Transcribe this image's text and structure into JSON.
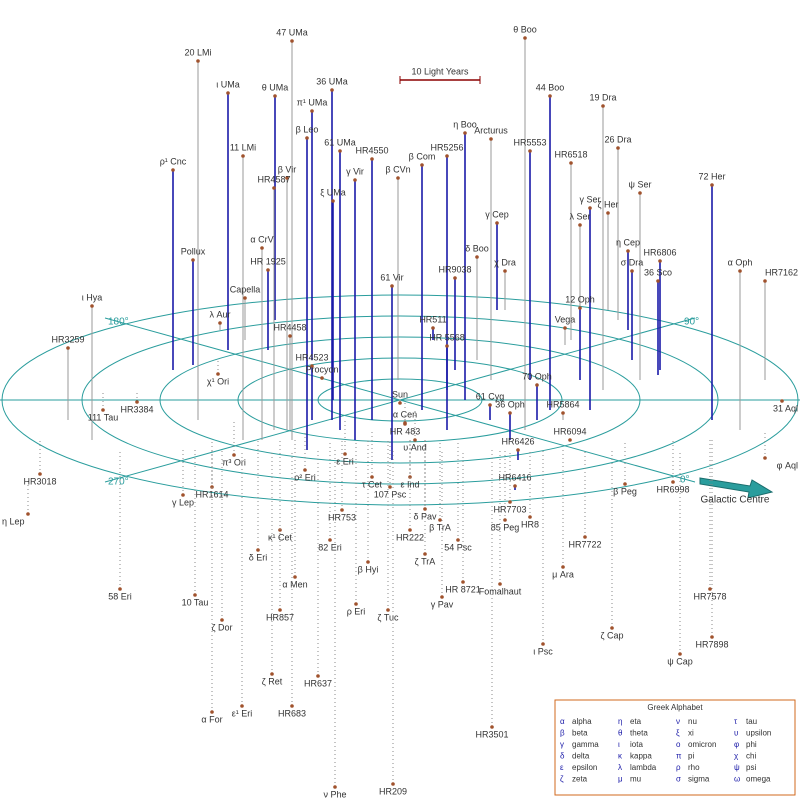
{
  "scale_label": "10 Light Years",
  "angle_labels": [
    "90°",
    "270°",
    "180°",
    "0°"
  ],
  "galactic_centre": "Galactic Centre",
  "stars": [
    "20 LMi",
    "47 UMa",
    "θ Boo",
    "ι UMa",
    "θ UMa",
    "36 UMa",
    "44 Boo",
    "19 Dra",
    "π¹ UMa",
    "η Boo",
    "Arcturus",
    "β Leo",
    "11 LMi",
    "61 UMa",
    "HR4550",
    "HR5256",
    "HR5553",
    "HR6518",
    "26 Dra",
    "ρ¹ Cnc",
    "β Vir",
    "γ Vir",
    "β CVn",
    "β Com",
    "HR4587",
    "ξ UMa",
    "72 Her",
    "ψ Ser",
    "γ Ser",
    "ζ Her",
    "λ Ser",
    "γ Cep",
    "α CrV",
    "η Cep",
    "δ Boo",
    "HR6806",
    "χ Dra",
    "Pollux",
    "HR 1925",
    "α Oph",
    "σ Dra",
    "HR7162",
    "36 Sco",
    "HR9038",
    "61 Vir",
    "Capella",
    "ι Hya",
    "12 Oph",
    "HR511",
    "λ Aur",
    "Vega",
    "HR4458",
    "HR 5568",
    "HR3259",
    "HR4523",
    "Procyon",
    "Sun",
    "α Cen",
    "61 Cyg",
    "70 Oph",
    "36 Oph",
    "HR5864",
    "HR6094",
    "HR6426",
    "HR6416",
    "HR 483",
    "υ And",
    "η Lep",
    "HR3018",
    "111 Tau",
    "HR3384",
    "HR1614",
    "γ Lep",
    "χ¹ Ori",
    "π³ Ori",
    "ο² Eri",
    "ε Eri",
    "τ Cet",
    "107 Psc",
    "ε Ind",
    "κ¹ Cet",
    "HR753",
    "82 Eri",
    "δ Eri",
    "α Men",
    "58 Eri",
    "10 Tau",
    "ζ Dor",
    "HR857",
    "ρ Eri",
    "β Hyi",
    "ζ Tuc",
    "HR222",
    "ζ TrA",
    "δ Pav",
    "β TrA",
    "54 Psc",
    "85 Peg",
    "HR8",
    "HR7703",
    "HR 8721",
    "Fomalhaut",
    "γ Pav",
    "μ Ara",
    "HR7722",
    "ζ Cap",
    "ι Psc",
    "ψ Cap",
    "HR7898",
    "HR7578",
    "HR6998",
    "β Peg",
    "φ Aql",
    "31 Aql",
    "ζ Ret",
    "HR637",
    "HR683",
    "α For",
    "ε¹ Eri",
    "HR3501",
    "ν Phe",
    "HR209"
  ],
  "legend": {
    "title": "Greek Alphabet",
    "letters": [
      {
        "symbol": "α",
        "name": "alpha"
      },
      {
        "symbol": "β",
        "name": "beta"
      },
      {
        "symbol": "γ",
        "name": "gamma"
      },
      {
        "symbol": "δ",
        "name": "delta"
      },
      {
        "symbol": "ε",
        "name": "epsilon"
      },
      {
        "symbol": "ζ",
        "name": "zeta"
      },
      {
        "symbol": "η",
        "name": "eta"
      },
      {
        "symbol": "θ",
        "name": "theta"
      },
      {
        "symbol": "ι",
        "name": "iota"
      },
      {
        "symbol": "κ",
        "name": "kappa"
      },
      {
        "symbol": "λ",
        "name": "lambda"
      },
      {
        "symbol": "μ",
        "name": "mu"
      },
      {
        "symbol": "ν",
        "name": "nu"
      },
      {
        "symbol": "ξ",
        "name": "xi"
      },
      {
        "symbol": "ο",
        "name": "omicron"
      },
      {
        "symbol": "π",
        "name": "pi"
      },
      {
        "symbol": "ρ",
        "name": "rho"
      },
      {
        "symbol": "σ",
        "name": "sigma"
      },
      {
        "symbol": "τ",
        "name": "tau"
      },
      {
        "symbol": "υ",
        "name": "upsilon"
      },
      {
        "symbol": "φ",
        "name": "phi"
      },
      {
        "symbol": "χ",
        "name": "chi"
      },
      {
        "symbol": "ψ",
        "name": "psi"
      },
      {
        "symbol": "ω",
        "name": "omega"
      }
    ]
  }
}
